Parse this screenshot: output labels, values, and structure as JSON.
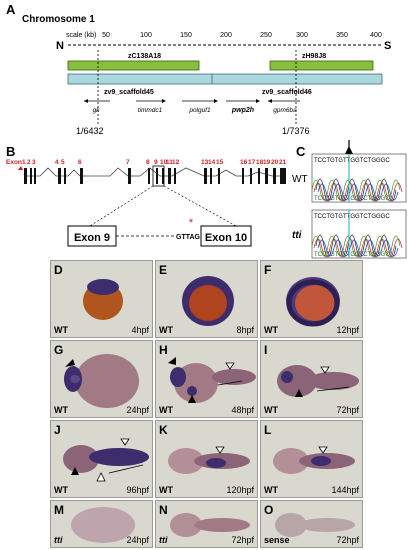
{
  "panel_a": {
    "label": "A",
    "chromosome": "Chromosome 1",
    "scale_label": "scale (kb)",
    "n_label": "N",
    "s_label": "S",
    "ticks": [
      "50",
      "100",
      "150",
      "200",
      "250",
      "300",
      "350",
      "400"
    ],
    "clones": [
      "zC138A18",
      "zH98J8"
    ],
    "scaffolds": [
      "zv9_scaffold45",
      "zv9_scaffold46"
    ],
    "genes": [
      "gk",
      "timmdc1",
      "polguf1",
      "pwp2h",
      "gpm6ba"
    ],
    "markers": [
      "1/6432",
      "1/7376"
    ]
  },
  "panel_b": {
    "label": "B",
    "exon_word": "Exon",
    "exon_numbers": [
      "1",
      "2",
      "3",
      "4",
      "5",
      "6",
      "7",
      "8",
      "9",
      "10",
      "11",
      "12",
      "13",
      "14",
      "15",
      "16",
      "17",
      "18",
      "19",
      "20",
      "21"
    ],
    "zoom_left": "Exon 9",
    "zoom_right": "Exon 10",
    "splice_seq": "GTTAG",
    "mutation_mark": "*"
  },
  "panel_c": {
    "label": "C",
    "wt_seq": "TCCTGTGTTGGTCTGGGC",
    "mut_seq": "TCCTGTGTTGGTCTGGGC",
    "wt_label": "WT",
    "mut_label": "tti"
  },
  "panels": [
    {
      "label": "D",
      "genotype": "WT",
      "stage": "4hpf"
    },
    {
      "label": "E",
      "genotype": "WT",
      "stage": "8hpf"
    },
    {
      "label": "F",
      "genotype": "WT",
      "stage": "12hpf"
    },
    {
      "label": "G",
      "genotype": "WT",
      "stage": "24hpf"
    },
    {
      "label": "H",
      "genotype": "WT",
      "stage": "48hpf"
    },
    {
      "label": "I",
      "genotype": "WT",
      "stage": "72hpf"
    },
    {
      "label": "J",
      "genotype": "WT",
      "stage": "96hpf"
    },
    {
      "label": "K",
      "genotype": "WT",
      "stage": "120hpf"
    },
    {
      "label": "L",
      "genotype": "WT",
      "stage": "144hpf"
    },
    {
      "label": "M",
      "genotype": "tti",
      "stage": "24hpf"
    },
    {
      "label": "N",
      "genotype": "tti",
      "stage": "72hpf"
    },
    {
      "label": "O",
      "genotype": "sense",
      "stage": "72hpf"
    }
  ]
}
